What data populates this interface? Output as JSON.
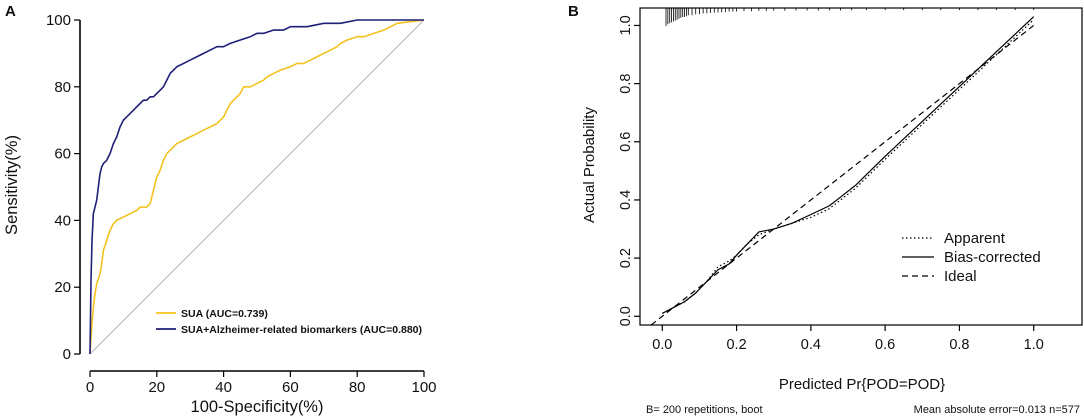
{
  "chart_data": [
    {
      "panel": "A",
      "type": "line",
      "xlabel": "100-Specificity(%)",
      "ylabel": "Sensitivity(%)",
      "xlim": [
        0,
        100
      ],
      "ylim": [
        0,
        100
      ],
      "xticks": [
        "0",
        "20",
        "40",
        "60",
        "80",
        "100"
      ],
      "yticks": [
        "0",
        "20",
        "40",
        "60",
        "80",
        "100"
      ],
      "reference_line": {
        "x": [
          0,
          100
        ],
        "y": [
          0,
          100
        ],
        "color": "#b3b3b3"
      },
      "series": [
        {
          "name": "SUA",
          "legend": "SUA  (AUC=0.739)",
          "color": "#f4c21f",
          "x": [
            0,
            0.5,
            1,
            1.5,
            2,
            3,
            3.5,
            4,
            5,
            6,
            7,
            8,
            10,
            12,
            14,
            15,
            17,
            18,
            19,
            20,
            21,
            22,
            23,
            24,
            25,
            26,
            28,
            30,
            32,
            34,
            36,
            38,
            40,
            41,
            42,
            43,
            44,
            45,
            46,
            48,
            50,
            52,
            53,
            55,
            57,
            60,
            62,
            64,
            66,
            68,
            70,
            72,
            74,
            75,
            77,
            80,
            82,
            85,
            88,
            90,
            92,
            100
          ],
          "y": [
            0,
            8,
            14,
            18,
            21,
            24,
            27,
            31,
            34,
            37,
            39,
            40,
            41,
            42,
            43,
            44,
            44,
            45,
            49,
            53,
            55,
            58,
            60,
            61,
            62,
            63,
            64,
            65,
            66,
            67,
            68,
            69,
            71,
            73,
            75,
            76,
            77,
            78,
            80,
            80,
            81,
            82,
            83,
            84,
            85,
            86,
            87,
            87,
            88,
            89,
            90,
            91,
            92,
            93,
            94,
            95,
            95,
            96,
            97,
            98,
            99,
            100
          ]
        },
        {
          "name": "SUA+Alzheimer-related biomarkers",
          "legend": "SUA+Alzheimer-related biomarkers  (AUC=0.880)",
          "color": "#1f1f78",
          "x": [
            0,
            0.3,
            0.6,
            1,
            1.5,
            2,
            2.5,
            3,
            3.5,
            4,
            5,
            6,
            7,
            8,
            9,
            10,
            11,
            12,
            13,
            14,
            15,
            16,
            17,
            18,
            19,
            20,
            21,
            22,
            23,
            24,
            25,
            26,
            28,
            30,
            32,
            34,
            36,
            38,
            40,
            42,
            45,
            48,
            50,
            52,
            55,
            58,
            60,
            65,
            70,
            75,
            80,
            85,
            90,
            95,
            100
          ],
          "y": [
            0,
            22,
            34,
            42,
            44,
            46,
            50,
            54,
            56,
            57,
            58,
            60,
            63,
            65,
            68,
            70,
            71,
            72,
            73,
            74,
            75,
            76,
            76,
            77,
            77,
            78,
            79,
            80,
            82,
            84,
            85,
            86,
            87,
            88,
            89,
            90,
            91,
            92,
            92,
            93,
            94,
            95,
            96,
            96,
            97,
            97,
            98,
            98,
            99,
            99,
            100,
            100,
            100,
            100,
            100
          ]
        }
      ]
    },
    {
      "panel": "B",
      "type": "line",
      "xlabel": "Predicted Pr{POD=POD}",
      "ylabel": "Actual Probability",
      "xlim": [
        -0.06,
        1.13
      ],
      "ylim": [
        -0.03,
        1.06
      ],
      "xticks": [
        "0.0",
        "0.2",
        "0.4",
        "0.6",
        "0.8",
        "1.0"
      ],
      "yticks": [
        "0.0",
        "0.2",
        "0.4",
        "0.6",
        "0.8",
        "1.0"
      ],
      "series": [
        {
          "name": "Apparent",
          "dash": "dotted",
          "x": [
            0.0,
            0.03,
            0.06,
            0.09,
            0.12,
            0.15,
            0.18,
            0.2,
            0.23,
            0.26,
            0.3,
            0.35,
            0.4,
            0.45,
            0.48,
            0.52,
            0.56,
            0.6,
            0.65,
            0.7,
            0.75,
            0.8,
            0.85,
            0.9,
            0.95,
            1.0
          ],
          "y": [
            0.01,
            0.03,
            0.05,
            0.08,
            0.12,
            0.17,
            0.19,
            0.21,
            0.25,
            0.28,
            0.3,
            0.32,
            0.34,
            0.37,
            0.4,
            0.44,
            0.49,
            0.54,
            0.6,
            0.66,
            0.72,
            0.78,
            0.84,
            0.9,
            0.96,
            1.02
          ]
        },
        {
          "name": "Bias-corrected",
          "dash": "solid",
          "x": [
            0.0,
            0.03,
            0.06,
            0.09,
            0.12,
            0.15,
            0.18,
            0.2,
            0.23,
            0.26,
            0.3,
            0.35,
            0.4,
            0.45,
            0.48,
            0.52,
            0.56,
            0.6,
            0.65,
            0.7,
            0.75,
            0.8,
            0.85,
            0.9,
            0.95,
            1.0
          ],
          "y": [
            0.01,
            0.03,
            0.05,
            0.08,
            0.12,
            0.16,
            0.18,
            0.21,
            0.25,
            0.29,
            0.3,
            0.32,
            0.35,
            0.38,
            0.41,
            0.45,
            0.5,
            0.55,
            0.61,
            0.67,
            0.73,
            0.79,
            0.85,
            0.91,
            0.97,
            1.03
          ]
        },
        {
          "name": "Ideal",
          "dash": "dashed",
          "x": [
            -0.03,
            1.0
          ],
          "y": [
            -0.03,
            1.0
          ]
        }
      ],
      "rug": {
        "x": [
          0.01,
          0.015,
          0.02,
          0.025,
          0.03,
          0.035,
          0.04,
          0.045,
          0.05,
          0.055,
          0.06,
          0.065,
          0.07,
          0.08,
          0.09,
          0.1,
          0.11,
          0.12,
          0.13,
          0.14,
          0.15,
          0.16,
          0.17,
          0.18,
          0.19,
          0.2,
          0.22,
          0.24,
          0.26,
          0.28,
          0.3,
          0.33,
          0.36,
          0.39,
          0.42,
          0.45,
          0.48,
          0.51,
          0.55,
          0.6,
          0.65,
          0.7,
          0.75,
          0.8,
          0.85,
          0.9,
          0.95,
          1.0
        ],
        "height": [
          1.0,
          0.9,
          0.85,
          0.8,
          0.75,
          0.7,
          0.65,
          0.6,
          0.55,
          0.5,
          0.5,
          0.45,
          0.4,
          0.4,
          0.35,
          0.35,
          0.3,
          0.3,
          0.28,
          0.26,
          0.25,
          0.24,
          0.22,
          0.2,
          0.2,
          0.2,
          0.18,
          0.18,
          0.16,
          0.16,
          0.15,
          0.15,
          0.14,
          0.14,
          0.14,
          0.13,
          0.13,
          0.13,
          0.12,
          0.12,
          0.12,
          0.12,
          0.12,
          0.12,
          0.12,
          0.12,
          0.12,
          0.12
        ]
      },
      "footer_left": "B= 200 repetitions, boot",
      "footer_right": "Mean absolute error=0.013 n=577"
    }
  ]
}
